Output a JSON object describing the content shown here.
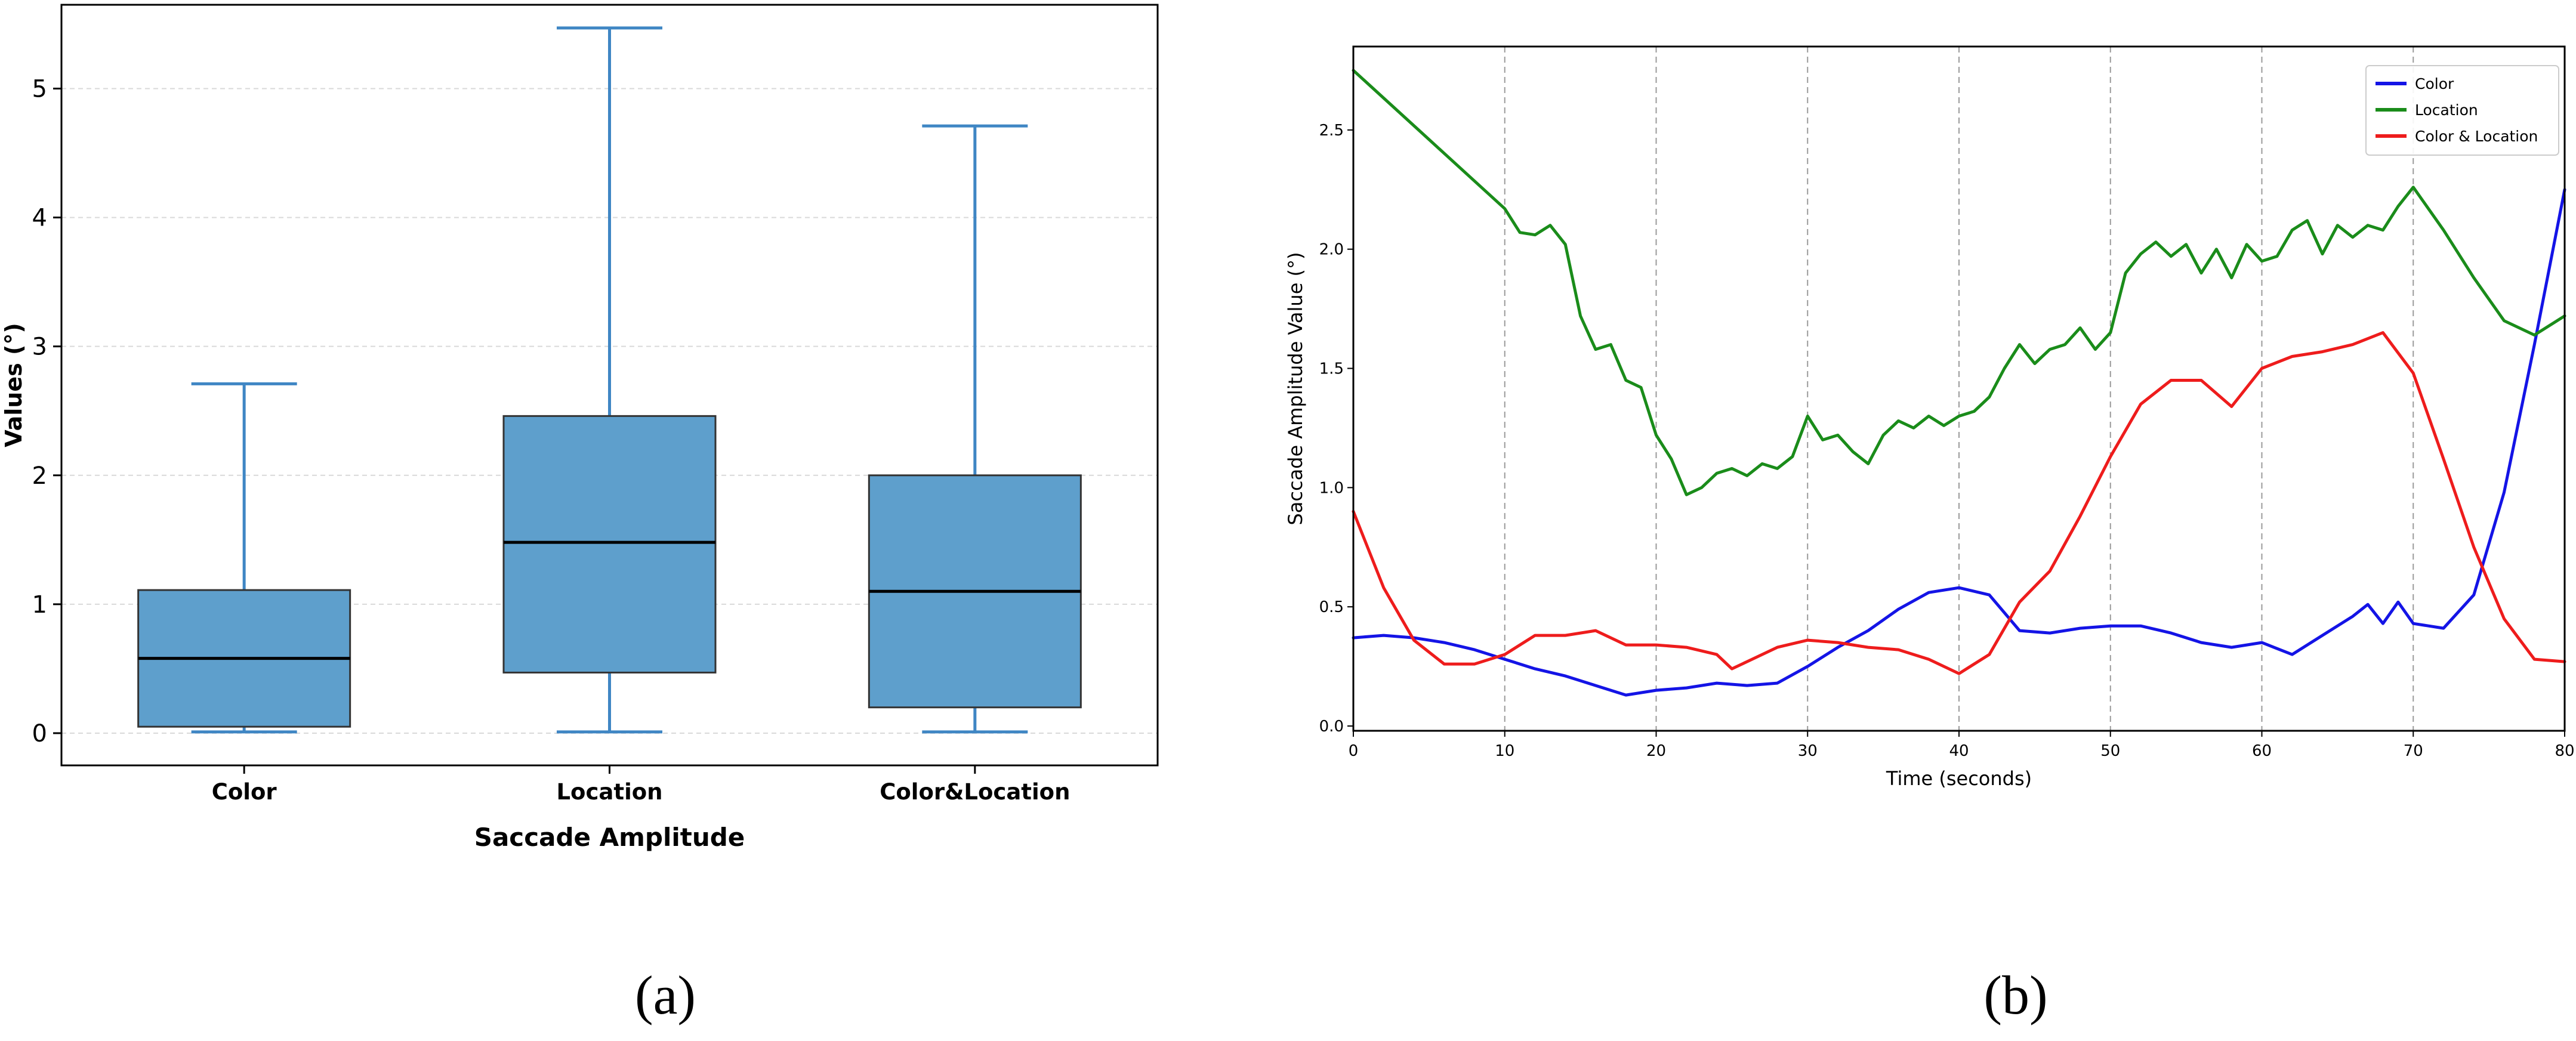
{
  "panels": [
    {
      "caption": "(a)"
    },
    {
      "caption": "(b)"
    }
  ],
  "chart_data": [
    {
      "type": "box",
      "title": "",
      "xlabel": "Saccade Amplitude",
      "ylabel": "Values (°)",
      "categories": [
        "Color",
        "Location",
        "Color&Location"
      ],
      "boxes": [
        {
          "whislo": 0.01,
          "q1": 0.05,
          "med": 0.58,
          "q3": 1.11,
          "whishi": 2.71
        },
        {
          "whislo": 0.01,
          "q1": 0.47,
          "med": 1.48,
          "q3": 2.46,
          "whishi": 5.47
        },
        {
          "whislo": 0.01,
          "q1": 0.2,
          "med": 1.1,
          "q3": 2.0,
          "whishi": 4.71
        }
      ],
      "ylim": [
        -0.25,
        5.65
      ],
      "yticks": [
        0,
        1,
        2,
        3,
        4,
        5
      ],
      "grid": "y-dashed",
      "box_color": "#5e9fcc",
      "whisker_color": "#3f86c4",
      "median_color": "#000000"
    },
    {
      "type": "line",
      "title": "",
      "xlabel": "Time (seconds)",
      "ylabel": "Saccade Amplitude Value (°)",
      "xlim": [
        0,
        80
      ],
      "ylim": [
        -0.02,
        2.85
      ],
      "xticks": [
        0,
        10,
        20,
        30,
        40,
        50,
        60,
        70,
        80
      ],
      "yticks": [
        0.0,
        0.5,
        1.0,
        1.5,
        2.0,
        2.5
      ],
      "grid": "x-dashed",
      "legend_position": "top-right",
      "series": [
        {
          "name": "Color",
          "color": "#1414e6",
          "x": [
            0,
            2,
            4,
            6,
            8,
            10,
            12,
            14,
            16,
            18,
            20,
            22,
            24,
            26,
            28,
            30,
            32,
            34,
            36,
            38,
            40,
            42,
            44,
            46,
            48,
            50,
            52,
            54,
            56,
            58,
            60,
            62,
            64,
            66,
            67,
            68,
            69,
            70,
            72,
            74,
            76,
            78,
            80
          ],
          "y": [
            0.37,
            0.38,
            0.37,
            0.35,
            0.32,
            0.28,
            0.24,
            0.21,
            0.17,
            0.13,
            0.15,
            0.16,
            0.18,
            0.17,
            0.18,
            0.25,
            0.33,
            0.4,
            0.49,
            0.56,
            0.58,
            0.55,
            0.4,
            0.39,
            0.41,
            0.42,
            0.42,
            0.39,
            0.35,
            0.33,
            0.35,
            0.3,
            0.38,
            0.46,
            0.51,
            0.43,
            0.52,
            0.43,
            0.41,
            0.55,
            0.98,
            1.6,
            2.25
          ]
        },
        {
          "name": "Location",
          "color": "#1a8c1a",
          "x": [
            0,
            5,
            10,
            11,
            12,
            13,
            14,
            15,
            16,
            17,
            18,
            19,
            20,
            21,
            22,
            23,
            24,
            25,
            26,
            27,
            28,
            29,
            30,
            31,
            32,
            33,
            34,
            35,
            36,
            37,
            38,
            39,
            40,
            41,
            42,
            43,
            44,
            45,
            46,
            47,
            48,
            49,
            50,
            51,
            52,
            53,
            54,
            55,
            56,
            57,
            58,
            59,
            60,
            61,
            62,
            63,
            64,
            65,
            66,
            67,
            68,
            69,
            70,
            72,
            74,
            76,
            78,
            80
          ],
          "y": [
            2.75,
            2.46,
            2.17,
            2.07,
            2.06,
            2.1,
            2.02,
            1.72,
            1.58,
            1.6,
            1.45,
            1.42,
            1.22,
            1.12,
            0.97,
            1.0,
            1.06,
            1.08,
            1.05,
            1.1,
            1.08,
            1.13,
            1.3,
            1.2,
            1.22,
            1.15,
            1.1,
            1.22,
            1.28,
            1.25,
            1.3,
            1.26,
            1.3,
            1.32,
            1.38,
            1.5,
            1.6,
            1.52,
            1.58,
            1.6,
            1.67,
            1.58,
            1.65,
            1.9,
            1.98,
            2.03,
            1.97,
            2.02,
            1.9,
            2.0,
            1.88,
            2.02,
            1.95,
            1.97,
            2.08,
            2.12,
            1.98,
            2.1,
            2.05,
            2.1,
            2.08,
            2.18,
            2.26,
            2.08,
            1.88,
            1.7,
            1.64,
            1.72
          ]
        },
        {
          "name": "Color & Location",
          "color": "#ee1c1c",
          "x": [
            0,
            2,
            4,
            6,
            8,
            10,
            12,
            14,
            16,
            18,
            20,
            22,
            24,
            25,
            26,
            28,
            30,
            32,
            34,
            36,
            38,
            40,
            42,
            44,
            46,
            48,
            50,
            52,
            54,
            56,
            58,
            60,
            62,
            64,
            66,
            68,
            70,
            72,
            74,
            76,
            78,
            80
          ],
          "y": [
            0.9,
            0.58,
            0.36,
            0.26,
            0.26,
            0.3,
            0.38,
            0.38,
            0.4,
            0.34,
            0.34,
            0.33,
            0.3,
            0.24,
            0.27,
            0.33,
            0.36,
            0.35,
            0.33,
            0.32,
            0.28,
            0.22,
            0.3,
            0.52,
            0.65,
            0.88,
            1.13,
            1.35,
            1.45,
            1.45,
            1.34,
            1.5,
            1.55,
            1.57,
            1.6,
            1.65,
            1.48,
            1.12,
            0.75,
            0.45,
            0.28,
            0.27
          ]
        }
      ]
    }
  ]
}
